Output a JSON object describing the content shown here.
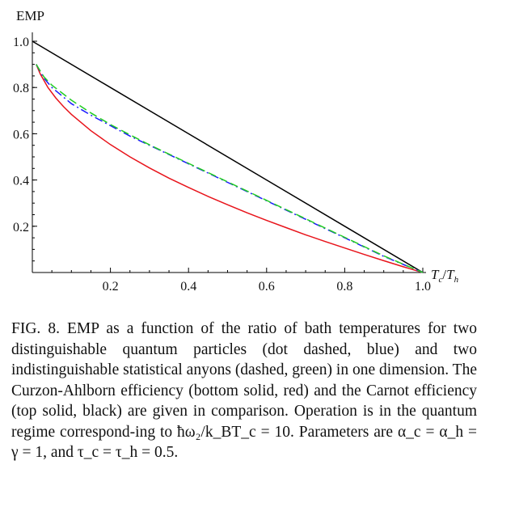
{
  "chart_data": {
    "type": "line",
    "ylabel": "EMP",
    "xlabel_main": "T",
    "xlabel_sub1": "c",
    "xlabel_sep": "/",
    "xlabel_main2": "T",
    "xlabel_sub2": "h",
    "xlim": [
      0,
      1.0
    ],
    "ylim": [
      0,
      1.0
    ],
    "x_ticks": [
      0.2,
      0.4,
      0.6,
      0.8,
      1.0
    ],
    "x_tick_labels": [
      "0.2",
      "0.4",
      "0.6",
      "0.8",
      "1.0"
    ],
    "y_ticks": [
      0.2,
      0.4,
      0.6,
      0.8,
      1.0
    ],
    "y_tick_labels": [
      "0.2",
      "0.4",
      "0.6",
      "0.8",
      "1.0"
    ],
    "grid": false,
    "series": [
      {
        "style": "solid",
        "color": "#000000",
        "x": [
          0.0,
          0.2,
          0.4,
          0.6,
          0.8,
          1.0
        ],
        "y": [
          1.0,
          0.8,
          0.6,
          0.4,
          0.2,
          0.0
        ]
      },
      {
        "style": "solid",
        "color": "#e8141b",
        "x": [
          0.01,
          0.02,
          0.04,
          0.06,
          0.08,
          0.1,
          0.15,
          0.2,
          0.25,
          0.3,
          0.35,
          0.4,
          0.45,
          0.5,
          0.55,
          0.6,
          0.65,
          0.7,
          0.75,
          0.8,
          0.85,
          0.9,
          0.95,
          1.0
        ],
        "y": [
          0.9,
          0.859,
          0.8,
          0.755,
          0.717,
          0.684,
          0.613,
          0.553,
          0.5,
          0.452,
          0.408,
          0.368,
          0.329,
          0.293,
          0.258,
          0.225,
          0.194,
          0.163,
          0.134,
          0.106,
          0.078,
          0.051,
          0.025,
          0.0
        ]
      },
      {
        "style": "dot-dashed",
        "color": "#1a1aff",
        "x": [
          0.01,
          0.03,
          0.05,
          0.1,
          0.15,
          0.2,
          0.25,
          0.3,
          0.35,
          0.4,
          0.45,
          0.5,
          0.55,
          0.6,
          0.65,
          0.7,
          0.75,
          0.8,
          0.85,
          0.9,
          0.95,
          1.0
        ],
        "y": [
          0.9,
          0.84,
          0.8,
          0.73,
          0.68,
          0.635,
          0.59,
          0.55,
          0.51,
          0.47,
          0.43,
          0.39,
          0.35,
          0.31,
          0.27,
          0.23,
          0.19,
          0.15,
          0.11,
          0.07,
          0.035,
          0.0
        ]
      },
      {
        "style": "dashed",
        "color": "#22cc22",
        "x": [
          0.01,
          0.03,
          0.05,
          0.1,
          0.15,
          0.2,
          0.25,
          0.3,
          0.35,
          0.4,
          0.45,
          0.5,
          0.55,
          0.6,
          0.65,
          0.7,
          0.75,
          0.8,
          0.85,
          0.9,
          0.95,
          1.0
        ],
        "y": [
          0.9,
          0.845,
          0.81,
          0.745,
          0.69,
          0.64,
          0.595,
          0.552,
          0.512,
          0.472,
          0.432,
          0.392,
          0.352,
          0.312,
          0.272,
          0.232,
          0.192,
          0.152,
          0.112,
          0.072,
          0.036,
          0.0
        ]
      }
    ]
  },
  "caption": {
    "text": "FIG. 8.   EMP as a function of the ratio of bath temperatures for two distinguishable quantum particles (dot dashed, blue) and two indistinguishable statistical anyons (dashed, green) in one dimension. The Curzon-Ahlborn efficiency (bottom solid, red) and the Carnot efficiency (top solid, black) are given in comparison. Operation is in the quantum regime correspond-ing to ħω₂/k_BT_c = 10. Parameters are α_c = α_h = γ = 1, and τ_c = τ_h = 0.5."
  }
}
